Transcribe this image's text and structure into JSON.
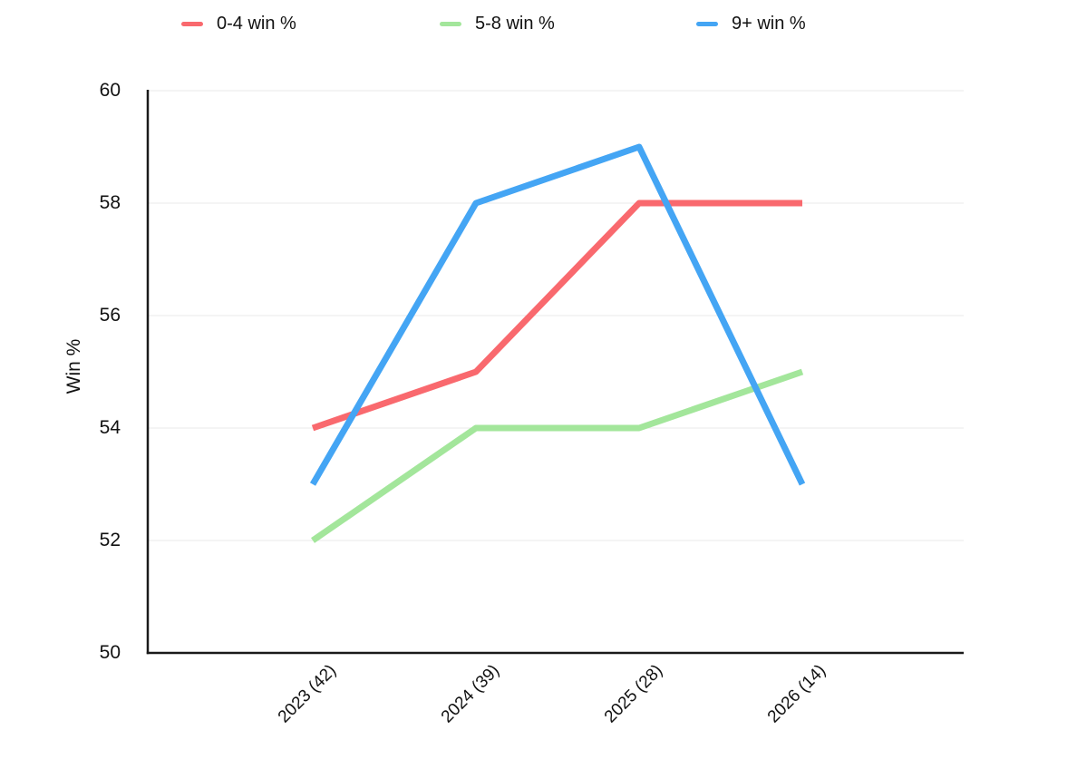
{
  "chart_data": {
    "type": "line",
    "title": "",
    "xlabel": "",
    "ylabel": "Win %",
    "ylim": [
      50,
      60
    ],
    "yticks": [
      50,
      52,
      54,
      56,
      58,
      60
    ],
    "categories": [
      "2023 (42)",
      "2024 (39)",
      "2025 (28)",
      "2026 (14)"
    ],
    "series": [
      {
        "name": "0-4 win %",
        "color": "#f9696e",
        "values": [
          54,
          55,
          58,
          58
        ]
      },
      {
        "name": "5-8 win %",
        "color": "#a3e69b",
        "values": [
          52,
          54,
          54,
          55
        ]
      },
      {
        "name": "9+ win %",
        "color": "#44a5f4",
        "values": [
          53,
          58,
          59,
          53
        ]
      }
    ],
    "legend_position": "top",
    "grid": true,
    "x_label_rotation_deg": -45
  }
}
